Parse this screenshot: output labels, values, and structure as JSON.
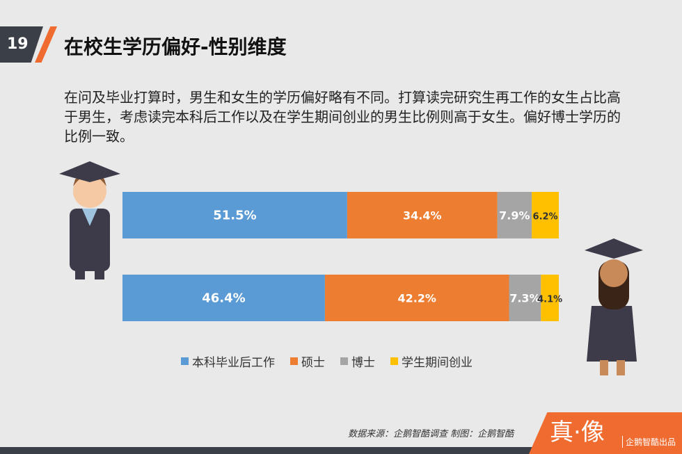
{
  "page_number": "19",
  "title": "在校生学历偏好-性别维度",
  "description": "在问及毕业打算时，男生和女生的学历偏好略有不同。打算读完研究生再工作的女生占比高于男生，考虑读完本科后工作以及在学生期间创业的男生比例则高于女生。偏好博士学历的比例一致。",
  "chart_data": {
    "type": "bar",
    "orientation": "horizontal-stacked-100",
    "categories": [
      "男生",
      "女生"
    ],
    "series": [
      {
        "name": "本科毕业后工作",
        "color": "#5b9bd5",
        "values": [
          51.5,
          46.4
        ],
        "labels": [
          "51.5%",
          "46.4%"
        ]
      },
      {
        "name": "硕士",
        "color": "#ed7d31",
        "values": [
          34.4,
          42.2
        ],
        "labels": [
          "34.4%",
          "42.2%"
        ]
      },
      {
        "name": "博士",
        "color": "#a5a5a5",
        "values": [
          7.9,
          7.3
        ],
        "labels": [
          "7.9%",
          "7.3%"
        ]
      },
      {
        "name": "学生期间创业",
        "color": "#ffc000",
        "values": [
          6.2,
          4.1
        ],
        "labels": [
          "6.2%",
          "4.1%"
        ]
      }
    ],
    "legend": "bottom"
  },
  "source": "数据来源：企鹅智酷调查  制图：企鹅智酷",
  "brand": {
    "logo": "真·像",
    "sub": "企鹅智酷出品"
  }
}
